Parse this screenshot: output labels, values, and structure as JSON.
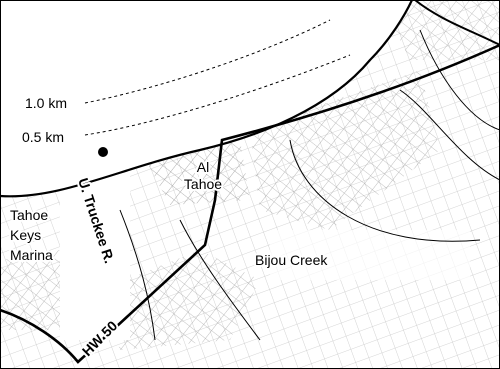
{
  "map": {
    "contours": [
      "1.0 km",
      "0.5 km"
    ],
    "places": {
      "al_tahoe": [
        "Al",
        "Tahoe"
      ],
      "tahoe_keys": [
        "Tahoe",
        "Keys",
        "Marina"
      ],
      "bijou_creek": "Bijou Creek",
      "truckee": "U. Truckee R.",
      "highway": "HW 50"
    }
  }
}
